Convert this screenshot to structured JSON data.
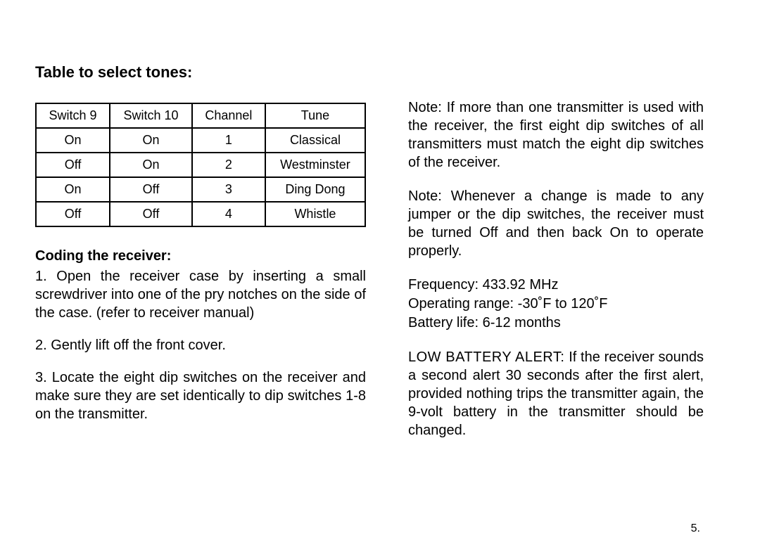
{
  "leftColumn": {
    "tableTitle": "Table to select tones:",
    "table": {
      "headers": [
        "Switch 9",
        "Switch 10",
        "Channel",
        "Tune"
      ],
      "rows": [
        [
          "On",
          "On",
          "1",
          "Classical"
        ],
        [
          "Off",
          "On",
          "2",
          "Westminster"
        ],
        [
          "On",
          "Off",
          "3",
          "Ding Dong"
        ],
        [
          "Off",
          "Off",
          "4",
          "Whistle"
        ]
      ]
    },
    "codingHeading": "Coding the receiver:",
    "step1": "1. Open the receiver case by inserting a small screwdriver into one of the pry notches on the side of the case. (refer to receiver manual)",
    "step2": "2. Gently lift off the front cover.",
    "step3": "3. Locate the eight dip switches on the receiver and make sure they are set identically to dip switches 1-8 on the transmitter."
  },
  "rightColumn": {
    "note1": "Note: If more than one transmitter is used with the receiver, the first eight dip switches of all transmitters must match the eight dip switches of the receiver.",
    "note2": "Note: Whenever a change is made to any jumper or the dip switches, the receiver must be turned Off and then back On to operate properly.",
    "specs": {
      "frequency": "Frequency: 433.92 MHz",
      "range": "Operating range: -30˚F to 120˚F",
      "battery": "Battery life: 6-12 months"
    },
    "lowBatteryLabel": "LOW BATTERY ALERT:",
    "lowBatteryText": " If the receiver sounds a second alert 30 seconds after the first alert, provided nothing trips the transmitter again, the 9-volt battery in the transmitter should be changed."
  },
  "pageNumber": "5."
}
